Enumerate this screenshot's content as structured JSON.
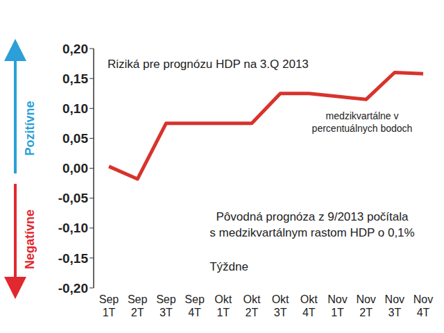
{
  "chart_data": {
    "type": "line",
    "title": "Riziká pre prognózu HDP na 3.Q 2013",
    "x_label": "Týždne",
    "annotations": [
      "medzikvartálne v percentuálnych bodoch",
      "Pôvodná prognóza z 9/2013 počítala s medzikvartálnym rastom HDP o 0,1%"
    ],
    "y_direction_labels": {
      "positive": "Pozitívne",
      "negative": "Negatívne"
    },
    "categories": [
      "Sep 1T",
      "Sep 2T",
      "Sep 3T",
      "Sep 4T",
      "Okt 1T",
      "Okt 2T",
      "Okt 3T",
      "Okt 4T",
      "Nov 1T",
      "Nov 2T",
      "Nov 3T",
      "Nov 4T"
    ],
    "values": [
      0.003,
      -0.018,
      0.075,
      0.075,
      0.075,
      0.075,
      0.125,
      0.125,
      0.12,
      0.115,
      0.16,
      0.158
    ],
    "color": "#d8332c",
    "ylim": [
      -0.2,
      0.2
    ],
    "yticks": [
      {
        "value": -0.2,
        "label": "-0,20"
      },
      {
        "value": -0.15,
        "label": "-0,15"
      },
      {
        "value": -0.1,
        "label": "-0,10"
      },
      {
        "value": -0.05,
        "label": "-0,05"
      },
      {
        "value": 0,
        "label": "0,00"
      },
      {
        "value": 0.05,
        "label": "0,05"
      },
      {
        "value": 0.1,
        "label": "0,10"
      },
      {
        "value": 0.15,
        "label": "0,15"
      },
      {
        "value": 0.2,
        "label": "0,20"
      }
    ],
    "grid": false
  }
}
